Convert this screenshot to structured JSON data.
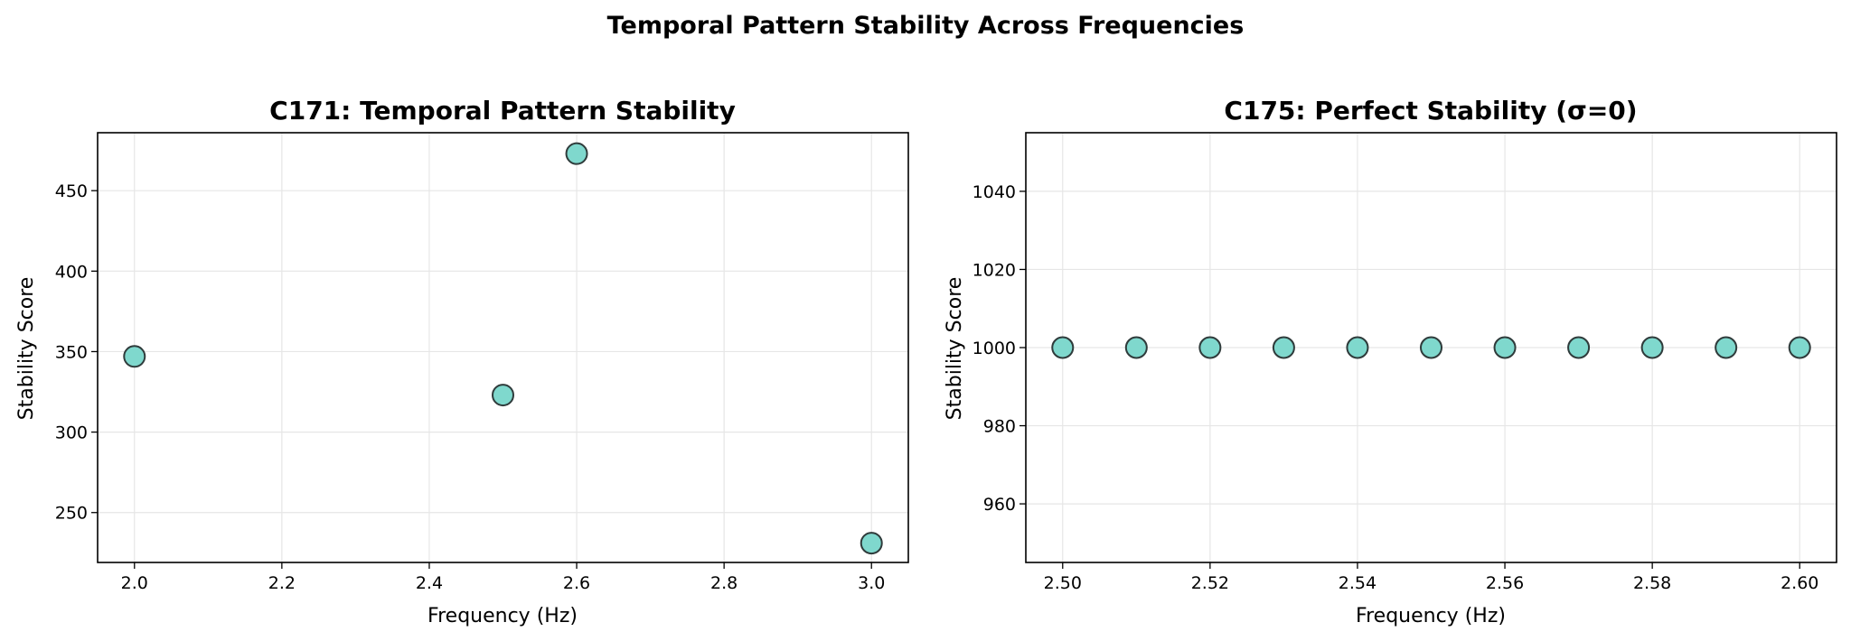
{
  "figure": {
    "suptitle": "Temporal Pattern Stability Across Frequencies"
  },
  "colors": {
    "marker_fill": "#7fd8cd",
    "marker_edge": "#2f3b3b",
    "grid": "#e6e6e6",
    "axes": "#000000"
  },
  "chart_data": [
    {
      "type": "scatter",
      "title": "C171: Temporal Pattern Stability",
      "xlabel": "Frequency (Hz)",
      "ylabel": "Stability Score",
      "x": [
        2.0,
        2.5,
        2.6,
        3.0
      ],
      "y": [
        347,
        323,
        473,
        231
      ],
      "xlim": [
        1.95,
        3.05
      ],
      "ylim": [
        219,
        486
      ],
      "xticks": [
        2.0,
        2.2,
        2.4,
        2.6,
        2.8,
        3.0
      ],
      "xtick_labels": [
        "2.0",
        "2.2",
        "2.4",
        "2.6",
        "2.8",
        "3.0"
      ],
      "yticks": [
        250,
        300,
        350,
        400,
        450
      ],
      "ytick_labels": [
        "250",
        "300",
        "350",
        "400",
        "450"
      ],
      "grid": true,
      "legend": "none"
    },
    {
      "type": "scatter",
      "title": "C175: Perfect Stability (σ=0)",
      "xlabel": "Frequency (Hz)",
      "ylabel": "Stability Score",
      "x": [
        2.5,
        2.51,
        2.52,
        2.53,
        2.54,
        2.55,
        2.56,
        2.57,
        2.58,
        2.59,
        2.6
      ],
      "y": [
        1000,
        1000,
        1000,
        1000,
        1000,
        1000,
        1000,
        1000,
        1000,
        1000,
        1000
      ],
      "xlim": [
        2.495,
        2.605
      ],
      "ylim": [
        945,
        1055
      ],
      "xticks": [
        2.5,
        2.52,
        2.54,
        2.56,
        2.58,
        2.6
      ],
      "xtick_labels": [
        "2.50",
        "2.52",
        "2.54",
        "2.56",
        "2.58",
        "2.60"
      ],
      "yticks": [
        960,
        980,
        1000,
        1020,
        1040
      ],
      "ytick_labels": [
        "960",
        "980",
        "1000",
        "1020",
        "1040"
      ],
      "grid": true,
      "legend": "none"
    }
  ]
}
